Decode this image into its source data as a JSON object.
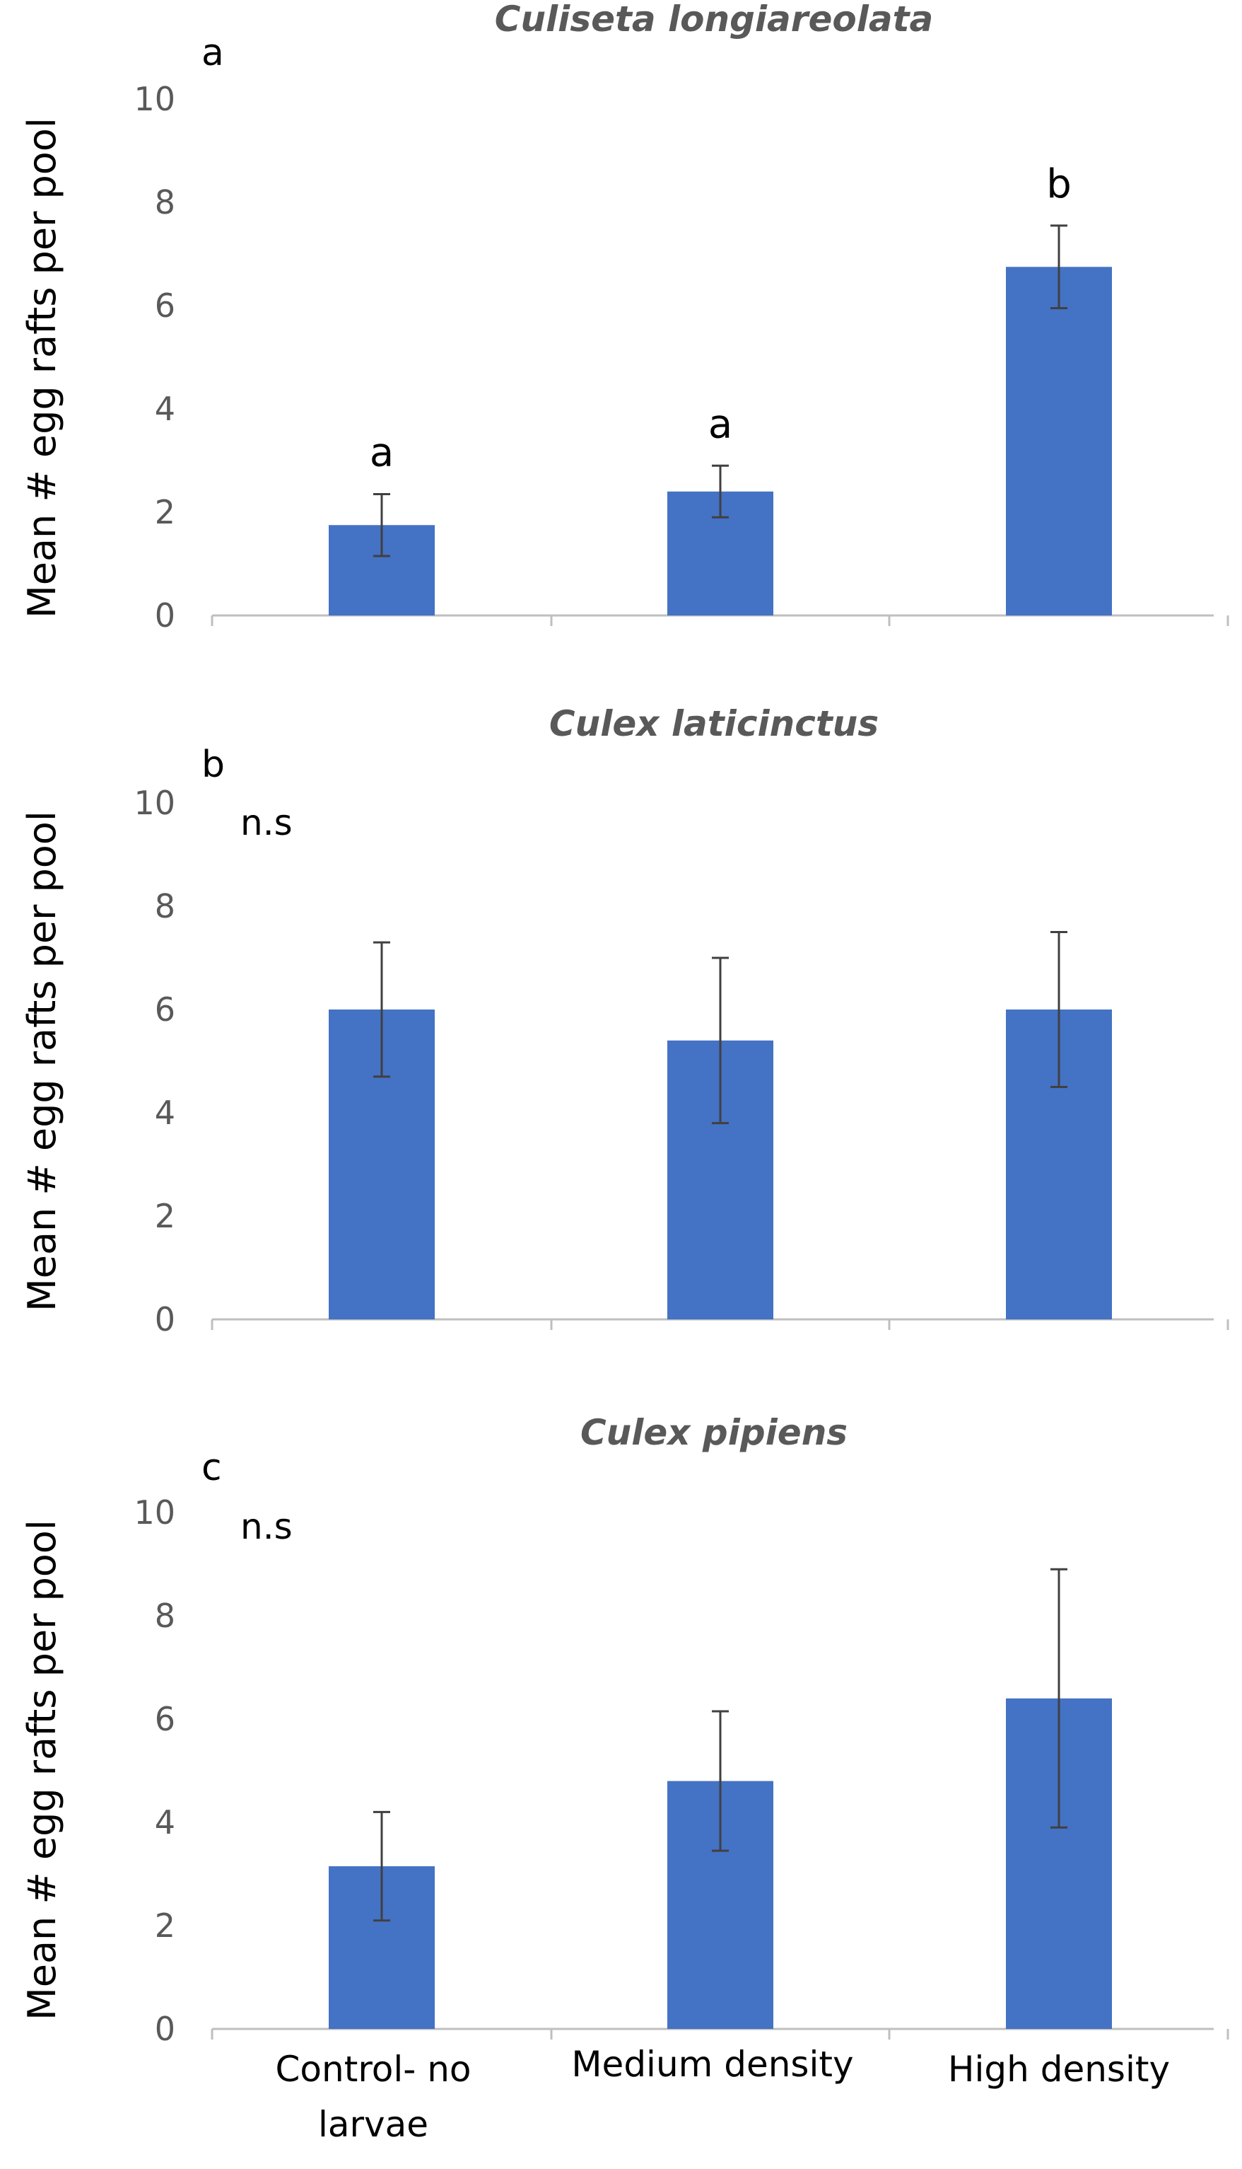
{
  "chart_data": [
    {
      "type": "bar",
      "panel_label": "a",
      "title": "Culiseta longiareolata",
      "ylabel": "Mean # egg rafts per pool",
      "xlabel": "",
      "categories": [
        "Control- no larvae",
        "Medium density",
        "High density"
      ],
      "values": [
        1.75,
        2.4,
        6.75
      ],
      "errors": [
        0.6,
        0.5,
        0.8
      ],
      "significance_labels": [
        "a",
        "a",
        "b"
      ],
      "yticks": [
        "0",
        "2",
        "4",
        "6",
        "8",
        "10"
      ],
      "ylim": [
        0,
        10
      ],
      "bar_color": "#4472C4"
    },
    {
      "type": "bar",
      "panel_label": "b",
      "title": "Culex laticinctus",
      "ylabel": "Mean # egg rafts per pool",
      "xlabel": "",
      "note": "n.s",
      "categories": [
        "Control- no larvae",
        "Medium density",
        "High density"
      ],
      "values": [
        6.0,
        5.4,
        6.0
      ],
      "errors": [
        1.3,
        1.6,
        1.5
      ],
      "significance_labels": [],
      "yticks": [
        "0",
        "2",
        "4",
        "6",
        "8",
        "10"
      ],
      "ylim": [
        0,
        10
      ],
      "bar_color": "#4472C4"
    },
    {
      "type": "bar",
      "panel_label": "c",
      "title": "Culex pipiens",
      "ylabel": "Mean # egg rafts per pool",
      "xlabel": "",
      "note": "n.s",
      "categories": [
        "Control- no larvae",
        "Medium density",
        "High density"
      ],
      "values": [
        3.15,
        4.8,
        6.4
      ],
      "errors": [
        1.05,
        1.35,
        2.5
      ],
      "significance_labels": [],
      "yticks": [
        "0",
        "2",
        "4",
        "6",
        "8",
        "10"
      ],
      "ylim": [
        0,
        10
      ],
      "bar_color": "#4472C4"
    }
  ],
  "x_axis": {
    "category_labels": [
      [
        "Control- no",
        "larvae"
      ],
      [
        "Medium density"
      ],
      [
        "High density"
      ]
    ]
  }
}
